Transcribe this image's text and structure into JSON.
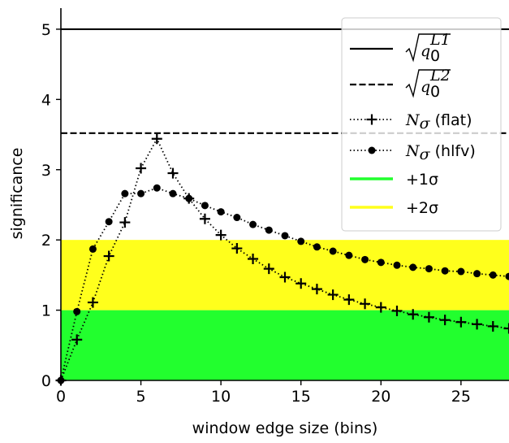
{
  "chart_data": {
    "type": "line",
    "xlabel": "window edge size (bins)",
    "ylabel": "significance",
    "xlim": [
      0,
      28
    ],
    "ylim": [
      0,
      5.3
    ],
    "xticks": [
      "0",
      "5",
      "10",
      "15",
      "20",
      "25"
    ],
    "yticks": [
      "0",
      "1",
      "2",
      "3",
      "4",
      "5"
    ],
    "grid": false,
    "legend_position": "top-right",
    "bands": [
      {
        "label": "+1σ",
        "from": 0,
        "to": 1,
        "color": "#22ff2e"
      },
      {
        "label": "+2σ",
        "from": 1,
        "to": 2,
        "color": "#ffff1c"
      }
    ],
    "hlines": [
      {
        "label": "√(q0^L1)",
        "y": 5.0,
        "style": "solid"
      },
      {
        "label": "√(q0^L2)",
        "y": 3.52,
        "style": "dashed"
      }
    ],
    "series": [
      {
        "name": "N_σ (flat)",
        "marker": "plus",
        "x": [
          0,
          1,
          2,
          3,
          4,
          5,
          6,
          7,
          8,
          9,
          10,
          11,
          12,
          13,
          14,
          15,
          16,
          17,
          18,
          19,
          20,
          21,
          22,
          23,
          24,
          25,
          26,
          27,
          28
        ],
        "values": [
          0,
          0.58,
          1.11,
          1.77,
          2.25,
          3.02,
          3.44,
          2.95,
          2.59,
          2.3,
          2.07,
          1.88,
          1.73,
          1.59,
          1.47,
          1.38,
          1.3,
          1.22,
          1.15,
          1.09,
          1.04,
          0.99,
          0.94,
          0.9,
          0.86,
          0.83,
          0.8,
          0.77,
          0.74
        ]
      },
      {
        "name": "N_σ (hlfv)",
        "marker": "dot",
        "x": [
          0,
          1,
          2,
          3,
          4,
          5,
          6,
          7,
          8,
          9,
          10,
          11,
          12,
          13,
          14,
          15,
          16,
          17,
          18,
          19,
          20,
          21,
          22,
          23,
          24,
          25,
          26,
          27,
          28
        ],
        "values": [
          0,
          0.98,
          1.87,
          2.26,
          2.66,
          2.66,
          2.74,
          2.66,
          2.59,
          2.49,
          2.4,
          2.32,
          2.22,
          2.14,
          2.06,
          1.98,
          1.9,
          1.84,
          1.78,
          1.72,
          1.68,
          1.64,
          1.61,
          1.59,
          1.56,
          1.55,
          1.52,
          1.5,
          1.48
        ]
      }
    ]
  },
  "legend": {
    "line1": {
      "base": "q",
      "sub": "0",
      "sup": "L1"
    },
    "line2": {
      "base": "q",
      "sub": "0",
      "sup": "L2"
    },
    "flat": {
      "sym": "N",
      "sub": "σ",
      "tag": " (flat)"
    },
    "hlfv": {
      "sym": "N",
      "sub": "σ",
      "tag": " (hlfv)"
    },
    "sigma1": "+1σ",
    "sigma2": "+2σ"
  },
  "colors": {
    "band1": "#22ff2e",
    "band2": "#ffff1c",
    "ink": "#000000"
  }
}
